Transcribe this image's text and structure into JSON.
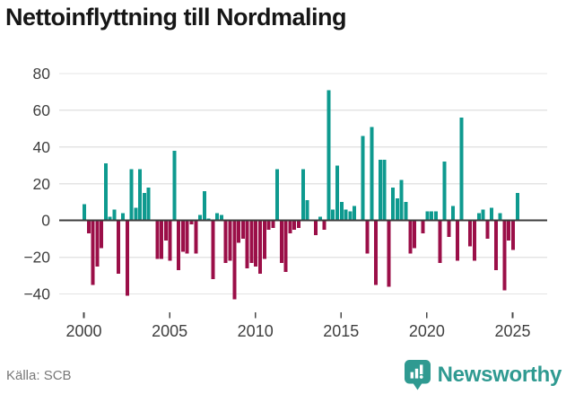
{
  "title": "Nettoinflyttning till Nordmaling",
  "footer": {
    "source_label": "Källa: SCB",
    "brand_name": "Newsworthy"
  },
  "colors": {
    "positive_bar": "#0e9a8f",
    "negative_bar": "#9b0f48",
    "grid_line": "#e4e4e4",
    "zero_line": "#3d3d3d",
    "axis_text": "#3f3f3f",
    "title_text": "#161616",
    "source_text": "#787878",
    "brand_teal": "#2f9a91",
    "background": "#ffffff"
  },
  "chart_data": {
    "type": "bar",
    "title": "Nettoinflyttning till Nordmaling",
    "xlabel": "",
    "ylabel": "",
    "x_unit": "quarter",
    "period_start": "2000 Q1",
    "period_end": "2025 Q2",
    "grid": true,
    "ylim": [
      -47,
      86
    ],
    "y_ticks": [
      80,
      60,
      40,
      20,
      0,
      -20,
      -40
    ],
    "y_tick_labels": [
      "80",
      "60",
      "40",
      "20",
      "0",
      "−20",
      "−40"
    ],
    "x_tick_years": [
      2000,
      2005,
      2010,
      2015,
      2020,
      2025
    ],
    "x_tick_labels": [
      "2000",
      "2005",
      "2010",
      "2015",
      "2020",
      "2025"
    ],
    "positive_color": "#0e9a8f",
    "negative_color": "#9b0f48",
    "values": [
      9,
      -7,
      -35,
      -25,
      -15,
      31,
      2,
      6,
      -29,
      4,
      -41,
      28,
      7,
      28,
      15,
      18,
      0,
      -21,
      -21,
      -11,
      -22,
      38,
      -27,
      -17,
      -18,
      -2,
      -18,
      3,
      16,
      1,
      -32,
      4,
      3,
      -23,
      -22,
      -43,
      -12,
      -10,
      -26,
      -23,
      -25,
      -29,
      -21,
      -5,
      -4,
      28,
      -23,
      -28,
      -7,
      -5,
      -4,
      28,
      11,
      0,
      -8,
      2,
      -5,
      71,
      6,
      30,
      10,
      6,
      5,
      8,
      0,
      46,
      -18,
      51,
      -35,
      33,
      33,
      -36,
      18,
      12,
      22,
      10,
      -18,
      -15,
      0,
      -7,
      5,
      5,
      5,
      -23,
      32,
      -9,
      8,
      -22,
      56,
      0,
      -14,
      -22,
      4,
      6,
      -10,
      7,
      -27,
      4,
      -38,
      -11,
      -16,
      15
    ]
  }
}
